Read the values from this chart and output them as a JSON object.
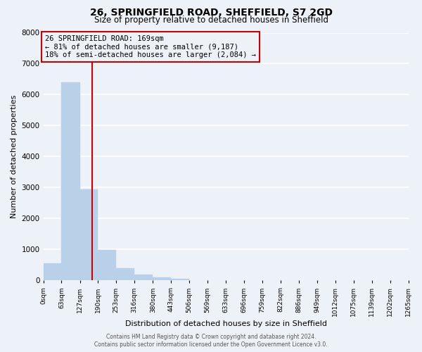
{
  "title": "26, SPRINGFIELD ROAD, SHEFFIELD, S7 2GD",
  "subtitle": "Size of property relative to detached houses in Sheffield",
  "xlabel": "Distribution of detached houses by size in Sheffield",
  "ylabel": "Number of detached properties",
  "property_label": "26 SPRINGFIELD ROAD: 169sqm",
  "line1": "← 81% of detached houses are smaller (9,187)",
  "line2": "18% of semi-detached houses are larger (2,084) →",
  "bin_edges": [
    0,
    63,
    127,
    190,
    253,
    316,
    380,
    443,
    506,
    569,
    633,
    696,
    759,
    822,
    886,
    949,
    1012,
    1075,
    1139,
    1202,
    1265
  ],
  "bin_counts": [
    560,
    6400,
    2950,
    980,
    390,
    190,
    100,
    60,
    0,
    0,
    0,
    0,
    0,
    0,
    0,
    0,
    0,
    0,
    0,
    0
  ],
  "bar_color": "#b8d0e8",
  "bar_edge_color": "#b8d0e8",
  "vline_x": 169,
  "vline_color": "#cc0000",
  "box_color": "#cc0000",
  "ylim": [
    0,
    8000
  ],
  "yticks": [
    0,
    1000,
    2000,
    3000,
    4000,
    5000,
    6000,
    7000,
    8000
  ],
  "bg_color": "#edf2f9",
  "grid_color": "#ffffff",
  "footer1": "Contains HM Land Registry data © Crown copyright and database right 2024.",
  "footer2": "Contains public sector information licensed under the Open Government Licence v3.0."
}
